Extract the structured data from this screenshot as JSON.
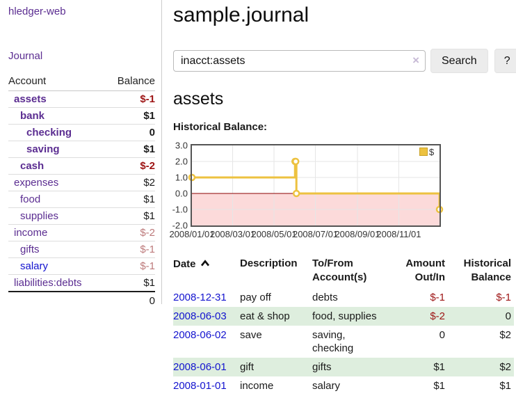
{
  "colors": {
    "link_purple": "#5b2d91",
    "link_blue": "#1313cf",
    "negative_strong": "#9d1414",
    "negative_muted": "#bd7a7b",
    "row_green": "#deeede",
    "button_bg": "#ececec",
    "clear_icon": "#c7bad6",
    "chart_line": "#edc240",
    "chart_negative_fill": "#fcdada",
    "chart_zero_line": "#8b0000"
  },
  "sidebar": {
    "brand": "hledger-web",
    "journal_link": "Journal",
    "columns": {
      "account": "Account",
      "balance": "Balance"
    },
    "accounts": [
      {
        "name": "assets",
        "level": 1,
        "name_class": "bold",
        "row_class": "boldrow",
        "balance": "$-1",
        "balance_class": "neg-strong"
      },
      {
        "name": "bank",
        "level": 2,
        "name_class": "bold",
        "row_class": "boldrow",
        "balance": "$1",
        "balance_class": ""
      },
      {
        "name": "checking",
        "level": 3,
        "name_class": "bold",
        "row_class": "boldrow",
        "balance": "0",
        "balance_class": ""
      },
      {
        "name": "saving",
        "level": 3,
        "name_class": "bold",
        "row_class": "boldrow",
        "balance": "$1",
        "balance_class": ""
      },
      {
        "name": "cash",
        "level": 2,
        "name_class": "bold",
        "row_class": "boldrow",
        "balance": "$-2",
        "balance_class": "neg-strong"
      },
      {
        "name": "expenses",
        "level": 1,
        "name_class": "",
        "row_class": "",
        "balance": "$2",
        "balance_class": ""
      },
      {
        "name": "food",
        "level": 2,
        "name_class": "",
        "row_class": "",
        "balance": "$1",
        "balance_class": ""
      },
      {
        "name": "supplies",
        "level": 2,
        "name_class": "",
        "row_class": "",
        "balance": "$1",
        "balance_class": ""
      },
      {
        "name": "income",
        "level": 1,
        "name_class": "",
        "row_class": "",
        "balance": "$-2",
        "balance_class": "neg-muted"
      },
      {
        "name": "gifts",
        "level": 2,
        "name_class": "",
        "row_class": "",
        "balance": "$-1",
        "balance_class": "neg-muted"
      },
      {
        "name": "salary",
        "level": 2,
        "name_class": "blue",
        "row_class": "",
        "balance": "$-1",
        "balance_class": "neg-muted"
      },
      {
        "name": "liabilities:debts",
        "level": 1,
        "name_class": "",
        "row_class": "",
        "balance": "$1",
        "balance_class": ""
      }
    ],
    "total": "0"
  },
  "main": {
    "title": "sample.journal",
    "search": {
      "value": "inacct:assets",
      "clear": "×",
      "button": "Search",
      "help": "?"
    },
    "heading": "assets",
    "chart_title": "Historical Balance:"
  },
  "chart_data": {
    "type": "line",
    "step": true,
    "title": "Historical Balance",
    "ylim": [
      -2,
      3
    ],
    "y_ticks": [
      3.0,
      2.0,
      1.0,
      0.0,
      -1.0,
      -2.0
    ],
    "x_range": [
      "2008-01-01",
      "2008-12-31"
    ],
    "x_ticks": [
      {
        "date": "2008-01-01",
        "label": "2008/01/01"
      },
      {
        "date": "2008-03-01",
        "label": "2008/03/01"
      },
      {
        "date": "2008-05-01",
        "label": "2008/05/01"
      },
      {
        "date": "2008-07-01",
        "label": "2008/07/01"
      },
      {
        "date": "2008-09-01",
        "label": "2008/09/01"
      },
      {
        "date": "2008-11-01",
        "label": "2008/11/01"
      }
    ],
    "grid": true,
    "legend_position": "top-right",
    "series": [
      {
        "name": "$",
        "color": "#edc240",
        "points": [
          [
            "2008-01-01",
            1
          ],
          [
            "2008-06-01",
            2
          ],
          [
            "2008-06-02",
            2
          ],
          [
            "2008-06-03",
            0
          ],
          [
            "2008-12-31",
            -1
          ]
        ]
      }
    ]
  },
  "register": {
    "columns": {
      "date": "Date",
      "description": "Description",
      "account": "To/From Account(s)",
      "amount": "Amount Out/In",
      "balance": "Historical Balance"
    },
    "rows": [
      {
        "date": "2008-12-31",
        "description": "pay off",
        "accounts": "debts",
        "amount": "$-1",
        "amount_class": "neg",
        "balance": "$-1",
        "balance_class": "neg"
      },
      {
        "date": "2008-06-03",
        "description": "eat & shop",
        "accounts": "food, supplies",
        "amount": "$-2",
        "amount_class": "neg",
        "balance": "0",
        "balance_class": ""
      },
      {
        "date": "2008-06-02",
        "description": "save",
        "accounts": "saving, checking",
        "amount": "0",
        "amount_class": "",
        "balance": "$2",
        "balance_class": ""
      },
      {
        "date": "2008-06-01",
        "description": "gift",
        "accounts": "gifts",
        "amount": "$1",
        "amount_class": "",
        "balance": "$2",
        "balance_class": ""
      },
      {
        "date": "2008-01-01",
        "description": "income",
        "accounts": "salary",
        "amount": "$1",
        "amount_class": "",
        "balance": "$1",
        "balance_class": ""
      }
    ]
  }
}
